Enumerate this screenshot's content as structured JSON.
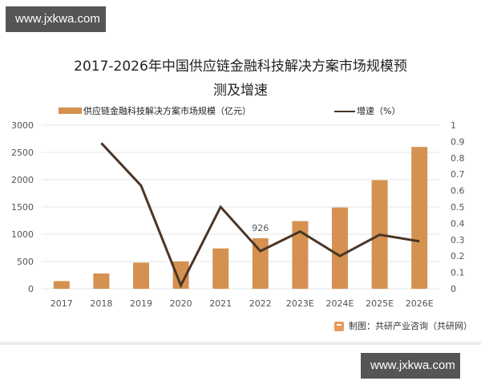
{
  "watermarks": {
    "top": "www.jxkwa.com",
    "bottom": "www.jxkwa.com"
  },
  "title": {
    "line1": "2017-2026年中国供应链金融科技解决方案市场规模预",
    "line2": "测及增速"
  },
  "legend": {
    "bar_label": "供应链金融科技解决方案市场规模（亿元）",
    "line_label": "增速（%）"
  },
  "source": "制图：共研产业咨询（共研网）",
  "colors": {
    "bar": "#D4914F",
    "line": "#4A3526",
    "grid": "#e6e6e6"
  },
  "chart_data": {
    "type": "bar+line",
    "title": "2017-2026年中国供应链金融科技解决方案市场规模预测及增速",
    "categories": [
      "2017",
      "2018",
      "2019",
      "2020",
      "2021",
      "2022",
      "2023E",
      "2024E",
      "2025E",
      "2026E"
    ],
    "series": [
      {
        "name": "供应链金融科技解决方案市场规模（亿元）",
        "type": "bar",
        "axis": "left",
        "values": [
          140,
          280,
          480,
          500,
          740,
          926,
          1240,
          1490,
          1990,
          2600
        ]
      },
      {
        "name": "增速（%）",
        "type": "line",
        "axis": "right",
        "values": [
          null,
          0.89,
          0.63,
          0.02,
          0.5,
          0.23,
          0.35,
          0.2,
          0.33,
          0.29
        ]
      }
    ],
    "data_labels": [
      {
        "category": "2022",
        "series": 0,
        "text": "926"
      }
    ],
    "left_axis": {
      "ylim": [
        0,
        3000
      ],
      "ticks": [
        "0",
        "500",
        "1000",
        "1500",
        "2000",
        "2500",
        "3000"
      ]
    },
    "right_axis": {
      "ylim": [
        0,
        1
      ],
      "ticks": [
        "0",
        "0.1",
        "0.2",
        "0.3",
        "0.4",
        "0.5",
        "0.6",
        "0.7",
        "0.8",
        "0.9",
        "1"
      ]
    },
    "grid": true,
    "legend_position": "top"
  }
}
